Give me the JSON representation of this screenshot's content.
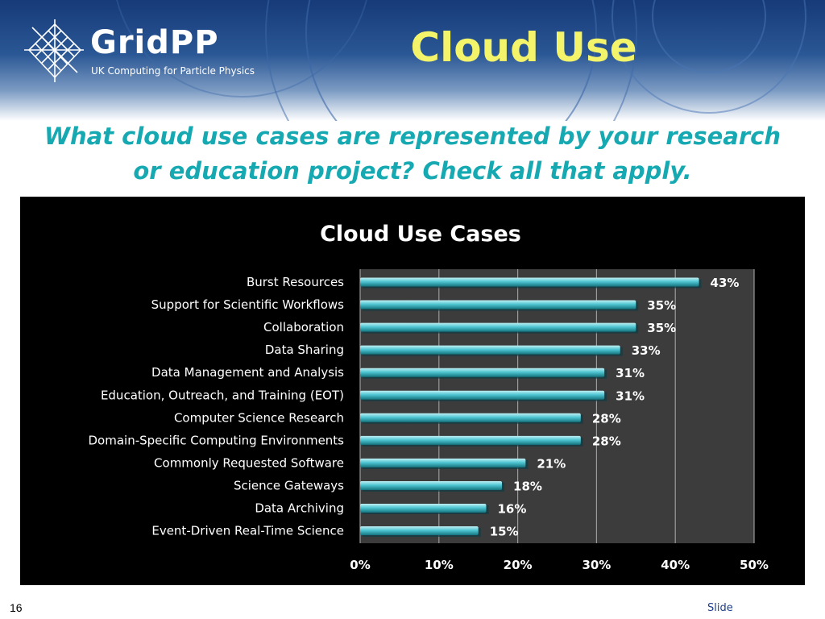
{
  "header": {
    "logo_name": "GridPP",
    "logo_tagline": "UK Computing for Particle Physics",
    "title": "Cloud Use"
  },
  "question": "What cloud use cases are represented by your research or education project? Check all that apply.",
  "footer": {
    "slide_number": "16",
    "label": "Slide"
  },
  "colors": {
    "bar": "#4fc6d2",
    "chart_background": "#000000",
    "plot_background": "#3c3c3c",
    "title_yellow": "#f4f46a",
    "question_teal": "#16a9b2"
  },
  "chart_data": {
    "type": "bar",
    "orientation": "horizontal",
    "title": "Cloud Use Cases",
    "categories": [
      "Burst Resources",
      "Support for Scientific Workflows",
      "Collaboration",
      "Data Sharing",
      "Data Management and Analysis",
      "Education, Outreach, and Training (EOT)",
      "Computer Science Research",
      "Domain-Specific Computing Environments",
      "Commonly Requested Software",
      "Science Gateways",
      "Data Archiving",
      "Event-Driven Real-Time Science"
    ],
    "values": [
      43,
      35,
      35,
      33,
      31,
      31,
      28,
      28,
      21,
      18,
      16,
      15
    ],
    "data_labels": [
      "43%",
      "35%",
      "35%",
      "33%",
      "31%",
      "31%",
      "28%",
      "28%",
      "21%",
      "18%",
      "16%",
      "15%"
    ],
    "x_ticks": [
      0,
      10,
      20,
      30,
      40,
      50
    ],
    "x_tick_labels": [
      "0%",
      "10%",
      "20%",
      "30%",
      "40%",
      "50%"
    ],
    "xlim": [
      0,
      50
    ],
    "grid": true
  }
}
